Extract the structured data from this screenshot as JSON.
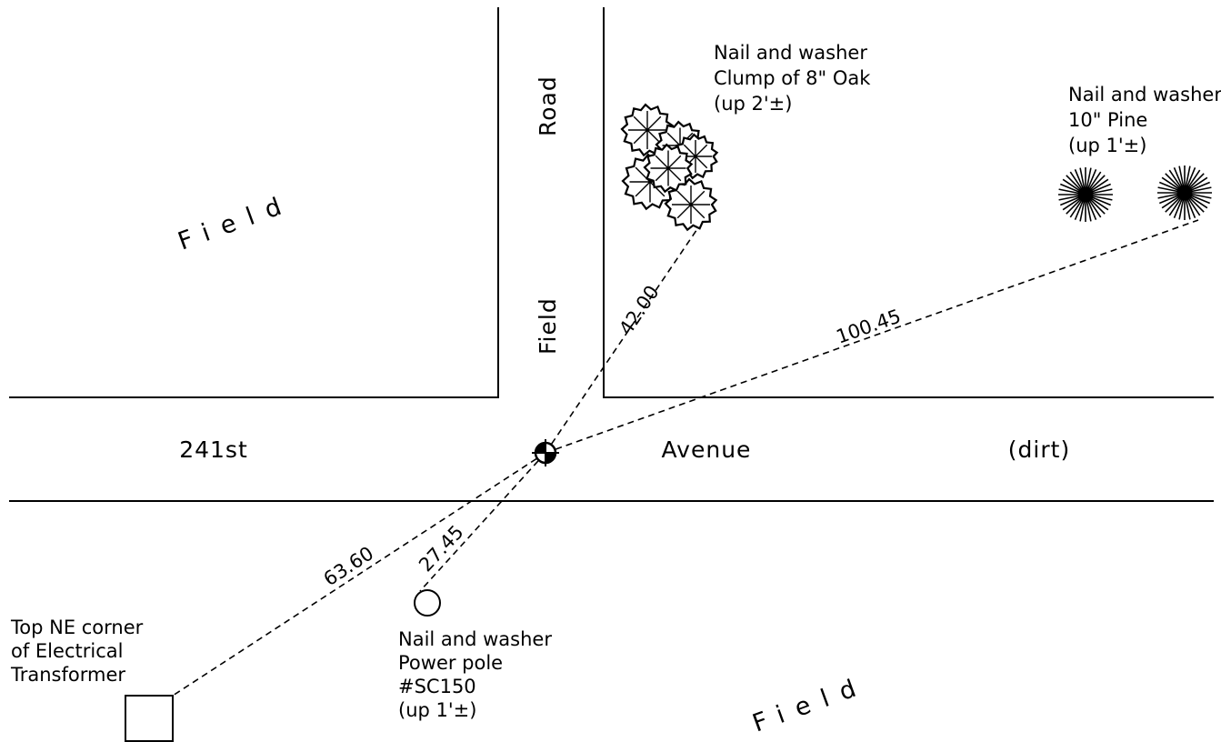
{
  "labels": {
    "field_nw": "Field",
    "field_s": "Field",
    "road_north": "Road",
    "road_south": "Field",
    "street_west": "241st",
    "street_mid": "Avenue",
    "street_east": "(dirt)"
  },
  "references": [
    {
      "lines": [
        "Nail and washer",
        "Clump of 8\" Oak",
        "(up 2'±)"
      ],
      "distance": "42.00"
    },
    {
      "lines": [
        "Nail and washer",
        "10\" Pine",
        "(up 1'±)"
      ],
      "distance": "100.45"
    },
    {
      "lines": [
        "Nail and washer",
        "Power pole",
        "#SC150",
        "(up 1'±)"
      ],
      "distance": "27.45"
    },
    {
      "lines": [
        "Top NE corner",
        "of Electrical",
        "Transformer"
      ],
      "distance": "63.60"
    }
  ]
}
